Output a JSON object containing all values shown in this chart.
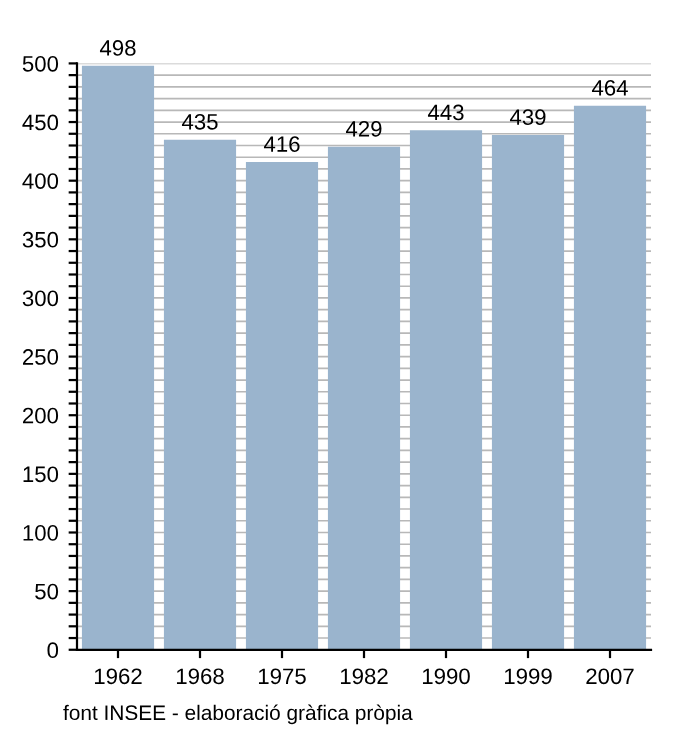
{
  "chart_data": {
    "type": "bar",
    "categories": [
      "1962",
      "1968",
      "1975",
      "1982",
      "1990",
      "1999",
      "2007"
    ],
    "values": [
      498,
      435,
      416,
      429,
      443,
      439,
      464
    ],
    "color": "#9ab4cd",
    "data_labels": true,
    "ylim": [
      0,
      500
    ],
    "yticks": [
      0,
      {
        "value": 10,
        "label": null
      },
      {
        "value": 20,
        "label": null
      },
      {
        "value": 30,
        "label": null
      },
      {
        "value": 40,
        "label": null
      },
      50,
      {
        "value": 60,
        "label": null
      },
      {
        "value": 70,
        "label": null
      },
      {
        "value": 80,
        "label": null
      },
      {
        "value": 90,
        "label": null
      },
      100,
      {
        "value": 110,
        "label": null
      },
      {
        "value": 120,
        "label": null
      },
      {
        "value": 130,
        "label": null
      },
      {
        "value": 140,
        "label": null
      },
      150,
      {
        "value": 160,
        "label": null
      },
      {
        "value": 170,
        "label": null
      },
      {
        "value": 180,
        "label": null
      },
      {
        "value": 190,
        "label": null
      },
      200,
      {
        "value": 210,
        "label": null
      },
      {
        "value": 220,
        "label": null
      },
      {
        "value": 230,
        "label": null
      },
      {
        "value": 240,
        "label": null
      },
      250,
      {
        "value": 260,
        "label": null
      },
      {
        "value": 270,
        "label": null
      },
      {
        "value": 280,
        "label": null
      },
      {
        "value": 290,
        "label": null
      },
      300,
      {
        "value": 310,
        "label": null
      },
      {
        "value": 320,
        "label": null
      },
      {
        "value": 330,
        "label": null
      },
      {
        "value": 340,
        "label": null
      },
      350,
      {
        "value": 360,
        "label": null
      },
      {
        "value": 370,
        "label": null
      },
      {
        "value": 380,
        "label": null
      },
      {
        "value": 390,
        "label": null
      },
      400,
      {
        "value": 410,
        "label": null
      },
      {
        "value": 420,
        "label": null
      },
      {
        "value": 430,
        "label": null
      },
      {
        "value": 440,
        "label": null
      },
      450,
      {
        "value": 460,
        "label": null
      },
      {
        "value": 470,
        "label": null
      },
      {
        "value": 480,
        "label": null
      },
      {
        "value": 490,
        "label": null
      },
      500
    ],
    "grid": "y",
    "annotations": [
      "font INSEE - elaboració gràfica pròpia"
    ]
  }
}
